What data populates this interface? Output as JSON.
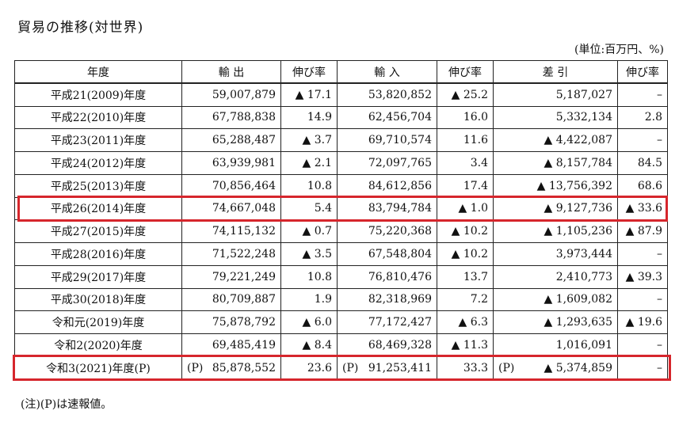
{
  "title": "貿易の推移(対世界)",
  "unit": "(単位:百万円、%)",
  "headers": [
    "年度",
    "輸 出",
    "伸び率",
    "輸 入",
    "伸び率",
    "差 引",
    "伸び率"
  ],
  "rows": [
    {
      "year": "平成21(2009)年度",
      "exports": "59,007,879",
      "exp_rate": "▲ 17.1",
      "imports": "53,820,852",
      "imp_rate": "▲ 25.2",
      "balance": "5,187,027",
      "bal_rate": "–"
    },
    {
      "year": "平成22(2010)年度",
      "exports": "67,788,838",
      "exp_rate": "14.9",
      "imports": "62,456,704",
      "imp_rate": "16.0",
      "balance": "5,332,134",
      "bal_rate": "2.8"
    },
    {
      "year": "平成23(2011)年度",
      "exports": "65,288,487",
      "exp_rate": "▲ 3.7",
      "imports": "69,710,574",
      "imp_rate": "11.6",
      "balance": "▲ 4,422,087",
      "bal_rate": "–"
    },
    {
      "year": "平成24(2012)年度",
      "exports": "63,939,981",
      "exp_rate": "▲ 2.1",
      "imports": "72,097,765",
      "imp_rate": "3.4",
      "balance": "▲ 8,157,784",
      "bal_rate": "84.5"
    },
    {
      "year": "平成25(2013)年度",
      "exports": "70,856,464",
      "exp_rate": "10.8",
      "imports": "84,612,856",
      "imp_rate": "17.4",
      "balance": "▲ 13,756,392",
      "bal_rate": "68.6"
    },
    {
      "year": "平成26(2014)年度",
      "exports": "74,667,048",
      "exp_rate": "5.4",
      "imports": "83,794,784",
      "imp_rate": "▲ 1.0",
      "balance": "▲ 9,127,736",
      "bal_rate": "▲ 33.6"
    },
    {
      "year": "平成27(2015)年度",
      "exports": "74,115,132",
      "exp_rate": "▲ 0.7",
      "imports": "75,220,368",
      "imp_rate": "▲ 10.2",
      "balance": "▲ 1,105,236",
      "bal_rate": "▲ 87.9"
    },
    {
      "year": "平成28(2016)年度",
      "exports": "71,522,248",
      "exp_rate": "▲ 3.5",
      "imports": "67,548,804",
      "imp_rate": "▲ 10.2",
      "balance": "3,973,444",
      "bal_rate": "–"
    },
    {
      "year": "平成29(2017)年度",
      "exports": "79,221,249",
      "exp_rate": "10.8",
      "imports": "76,810,476",
      "imp_rate": "13.7",
      "balance": "2,410,773",
      "bal_rate": "▲ 39.3"
    },
    {
      "year": "平成30(2018)年度",
      "exports": "80,709,887",
      "exp_rate": "1.9",
      "imports": "82,318,969",
      "imp_rate": "7.2",
      "balance": "▲ 1,609,082",
      "bal_rate": "–"
    },
    {
      "year": "令和元(2019)年度",
      "exports": "75,878,792",
      "exp_rate": "▲ 6.0",
      "imports": "77,172,427",
      "imp_rate": "▲ 6.3",
      "balance": "▲ 1,293,635",
      "bal_rate": "▲ 19.6"
    },
    {
      "year": "令和2(2020)年度",
      "exports": "69,485,419",
      "exp_rate": "▲ 8.4",
      "imports": "68,469,328",
      "imp_rate": "▲ 11.3",
      "balance": "1,016,091",
      "bal_rate": "–"
    }
  ],
  "last_row": {
    "year": "令和3(2021)年度(P)",
    "p_mark": "(P)",
    "exports": "85,878,552",
    "exp_rate": "23.6",
    "imports": "91,253,411",
    "imp_rate": "33.3",
    "balance": "▲ 5,374,859",
    "bal_rate": "–"
  },
  "note": "(注)(P)は速報値。",
  "highlight_color": "#d6262c"
}
